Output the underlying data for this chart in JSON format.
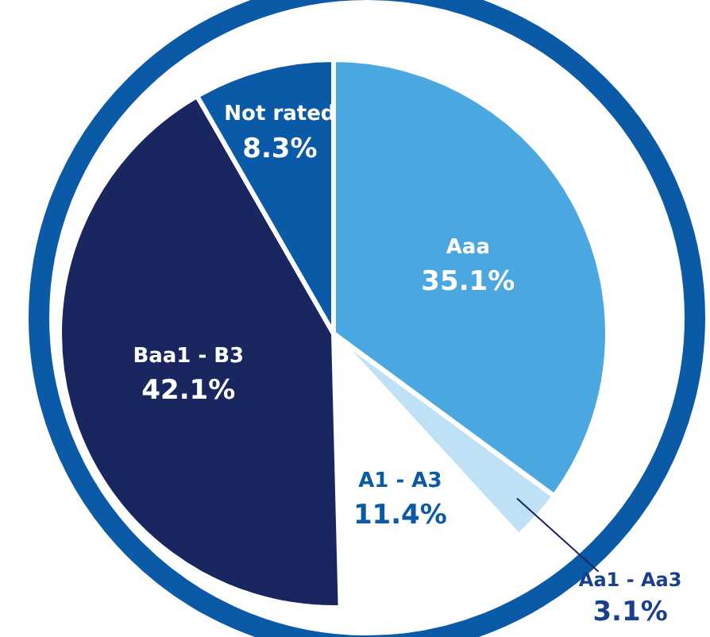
{
  "chart_data": {
    "type": "pie",
    "categories": [
      "Aaa",
      "Aa1 - Aa3",
      "A1 - A3",
      "Baa1 - B3",
      "Not rated"
    ],
    "values": [
      35.1,
      3.1,
      11.4,
      42.1,
      8.3
    ],
    "value_labels": [
      "35.1%",
      "3.1%",
      "11.4%",
      "42.1%",
      "8.3%"
    ],
    "colors": [
      "#4ba7df",
      "#bfe1f6",
      "#ffffff",
      "#1a2660",
      "#0b5aa8"
    ],
    "legend": false
  }
}
